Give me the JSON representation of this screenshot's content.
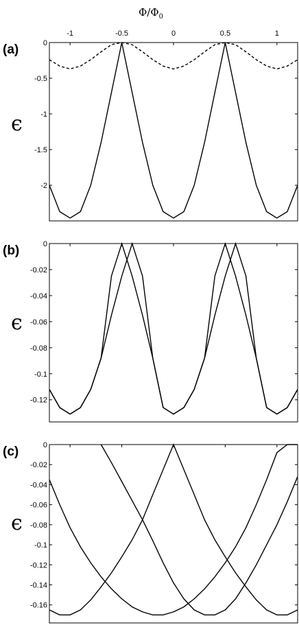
{
  "figure": {
    "top_axis_title": "Φ/Φ",
    "top_axis_title_sub": "0",
    "y_symbol": "ϵ"
  },
  "chart_data": [
    {
      "type": "line",
      "panel_label": "(a)",
      "x_axis_position": "top",
      "xlim": [
        -1.2,
        1.2
      ],
      "ylim": [
        -2.5,
        0
      ],
      "x_ticks": [
        -1,
        -0.5,
        0,
        0.5,
        1
      ],
      "x_tick_labels": [
        "-1",
        "-0.5",
        "0",
        "0.5",
        "1"
      ],
      "y_ticks": [
        0,
        -0.5,
        -1,
        -1.5,
        -2
      ],
      "y_tick_labels": [
        "0",
        "-0.5",
        "-1",
        "-1.5",
        "-2"
      ],
      "ylabel": "ϵ",
      "series": [
        {
          "style": "solid",
          "x": [
            -1.2,
            -1.1,
            -1.0,
            -0.9,
            -0.8,
            -0.7,
            -0.6,
            -0.5,
            -0.4,
            -0.3,
            -0.2,
            -0.1,
            0,
            0.1,
            0.2,
            0.3,
            0.4,
            0.5,
            0.6,
            0.7,
            0.8,
            0.9,
            1.0,
            1.1,
            1.2
          ],
          "y": [
            -2.0,
            -2.37,
            -2.46,
            -2.37,
            -2.0,
            -1.4,
            -0.7,
            0,
            -0.7,
            -1.4,
            -2.0,
            -2.37,
            -2.46,
            -2.37,
            -2.0,
            -1.4,
            -0.7,
            0,
            -0.7,
            -1.4,
            -2.0,
            -2.37,
            -2.46,
            -2.37,
            -2.0
          ]
        },
        {
          "style": "dashed",
          "x": [
            -1.2,
            -1.1,
            -1.0,
            -0.9,
            -0.8,
            -0.7,
            -0.6,
            -0.5,
            -0.4,
            -0.3,
            -0.2,
            -0.1,
            0,
            0.1,
            0.2,
            0.3,
            0.4,
            0.5,
            0.6,
            0.7,
            0.8,
            0.9,
            1.0,
            1.1,
            1.2
          ],
          "y": [
            -0.24,
            -0.33,
            -0.37,
            -0.33,
            -0.24,
            -0.13,
            -0.03,
            0,
            -0.03,
            -0.13,
            -0.24,
            -0.33,
            -0.37,
            -0.33,
            -0.24,
            -0.13,
            -0.03,
            0,
            -0.03,
            -0.13,
            -0.24,
            -0.33,
            -0.37,
            -0.33,
            -0.24
          ]
        }
      ]
    },
    {
      "type": "line",
      "panel_label": "(b)",
      "xlim": [
        -1.2,
        1.2
      ],
      "ylim": [
        -0.137,
        0
      ],
      "y_ticks": [
        0,
        -0.02,
        -0.04,
        -0.06,
        -0.08,
        -0.1,
        -0.12
      ],
      "y_tick_labels": [
        "0",
        "-0.02",
        "-0.04",
        "-0.06",
        "-0.08",
        "-0.1",
        "-0.12"
      ],
      "ylabel": "ϵ",
      "series": [
        {
          "style": "solid",
          "x": [
            -1.2,
            -1.1,
            -1.0,
            -0.9,
            -0.8,
            -0.7,
            -0.6,
            -0.5,
            -0.4,
            -0.3,
            -0.2,
            -0.1,
            0,
            0.1,
            0.2,
            0.3,
            0.4,
            0.5,
            0.6,
            0.7,
            0.8,
            0.9,
            1.0,
            1.1,
            1.2
          ],
          "y": [
            -0.112,
            -0.126,
            -0.131,
            -0.126,
            -0.112,
            -0.088,
            -0.055,
            -0.025,
            0,
            -0.025,
            -0.088,
            -0.126,
            -0.131,
            -0.126,
            -0.112,
            -0.088,
            -0.055,
            -0.025,
            0,
            -0.025,
            -0.088,
            -0.126,
            -0.131,
            -0.126,
            -0.112
          ]
        },
        {
          "style": "solid",
          "x": [
            -1.2,
            -1.1,
            -1.0,
            -0.9,
            -0.8,
            -0.7,
            -0.6,
            -0.5,
            -0.4,
            -0.3,
            -0.2,
            -0.1,
            0,
            0.1,
            0.2,
            0.3,
            0.4,
            0.5,
            0.6,
            0.7,
            0.8,
            0.9,
            1.0,
            1.1,
            1.2
          ],
          "y": [
            -0.112,
            -0.126,
            -0.131,
            -0.126,
            -0.112,
            -0.088,
            -0.025,
            0,
            -0.025,
            -0.055,
            -0.088,
            -0.126,
            -0.131,
            -0.126,
            -0.112,
            -0.088,
            -0.025,
            0,
            -0.025,
            -0.055,
            -0.088,
            -0.126,
            -0.131,
            -0.126,
            -0.112
          ]
        }
      ]
    },
    {
      "type": "line",
      "panel_label": "(c)",
      "xlim": [
        -1.2,
        1.2
      ],
      "ylim": [
        -0.178,
        0
      ],
      "y_ticks": [
        0,
        -0.02,
        -0.04,
        -0.06,
        -0.08,
        -0.1,
        -0.12,
        -0.14,
        -0.16
      ],
      "y_tick_labels": [
        "0",
        "-0.02",
        "-0.04",
        "-0.06",
        "-0.08",
        "-0.1",
        "-0.12",
        "-0.14",
        "-0.16"
      ],
      "ylabel": "ϵ",
      "series": [
        {
          "style": "solid",
          "x": [
            -1.2,
            -1.1,
            -1.0,
            -0.9,
            -0.8,
            -0.7,
            -0.6,
            -0.5,
            -0.4,
            -0.3,
            -0.2,
            -0.1,
            0,
            0.1,
            0.2,
            0.3,
            0.4,
            0.5,
            0.6,
            0.7,
            0.8,
            0.9,
            1.0,
            1.1,
            1.2
          ],
          "y": [
            -0.035,
            -0.06,
            -0.083,
            -0.102,
            -0.118,
            -0.132,
            -0.144,
            -0.154,
            -0.162,
            -0.167,
            -0.17,
            -0.17,
            -0.167,
            -0.162,
            -0.154,
            -0.144,
            -0.132,
            -0.118,
            -0.102,
            -0.083,
            -0.06,
            -0.035,
            -0.008,
            0.0,
            0.0
          ]
        },
        {
          "style": "solid",
          "x": [
            -0.7,
            -0.6,
            -0.5,
            -0.4,
            -0.3,
            -0.2,
            -0.1,
            0,
            0.1,
            0.2,
            0.3,
            0.4,
            0.5,
            0.6,
            0.7,
            0.8,
            0.9,
            1.0,
            1.1,
            1.2
          ],
          "y": [
            0,
            -0.018,
            -0.037,
            -0.056,
            -0.075,
            -0.096,
            -0.118,
            -0.138,
            -0.154,
            -0.165,
            -0.17,
            -0.17,
            -0.165,
            -0.154,
            -0.138,
            -0.12,
            -0.1,
            -0.08,
            -0.057,
            -0.032
          ]
        },
        {
          "style": "solid",
          "x": [
            -1.2,
            -1.1,
            -1.0,
            -0.9,
            -0.8,
            -0.7,
            -0.6,
            -0.5,
            -0.4,
            -0.3,
            -0.2,
            -0.1,
            0,
            0.1,
            0.2,
            0.3,
            0.4,
            0.5,
            0.6,
            0.7,
            0.8,
            0.9,
            1.0,
            1.1,
            1.2
          ],
          "y": [
            -0.165,
            -0.17,
            -0.17,
            -0.165,
            -0.155,
            -0.142,
            -0.128,
            -0.112,
            -0.095,
            -0.075,
            -0.05,
            -0.025,
            0,
            -0.025,
            -0.05,
            -0.075,
            -0.095,
            -0.112,
            -0.128,
            -0.142,
            -0.155,
            -0.165,
            -0.17,
            -0.17,
            -0.165
          ]
        }
      ]
    }
  ]
}
